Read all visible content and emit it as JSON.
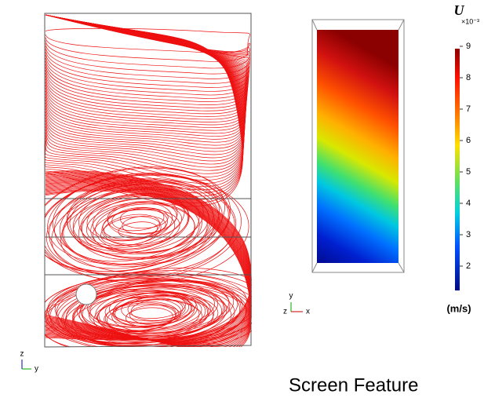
{
  "colorbar": {
    "symbol": "U",
    "multiplier": "×10⁻³",
    "ticks": [
      "9",
      "8",
      "7",
      "6",
      "5",
      "4",
      "3",
      "2"
    ],
    "unit": "(m/s)"
  },
  "left_axes": {
    "up": "z",
    "right": "y"
  },
  "middle_axes": {
    "up": "y",
    "left": "z",
    "right": "x"
  },
  "caption": "Screen Feature"
}
